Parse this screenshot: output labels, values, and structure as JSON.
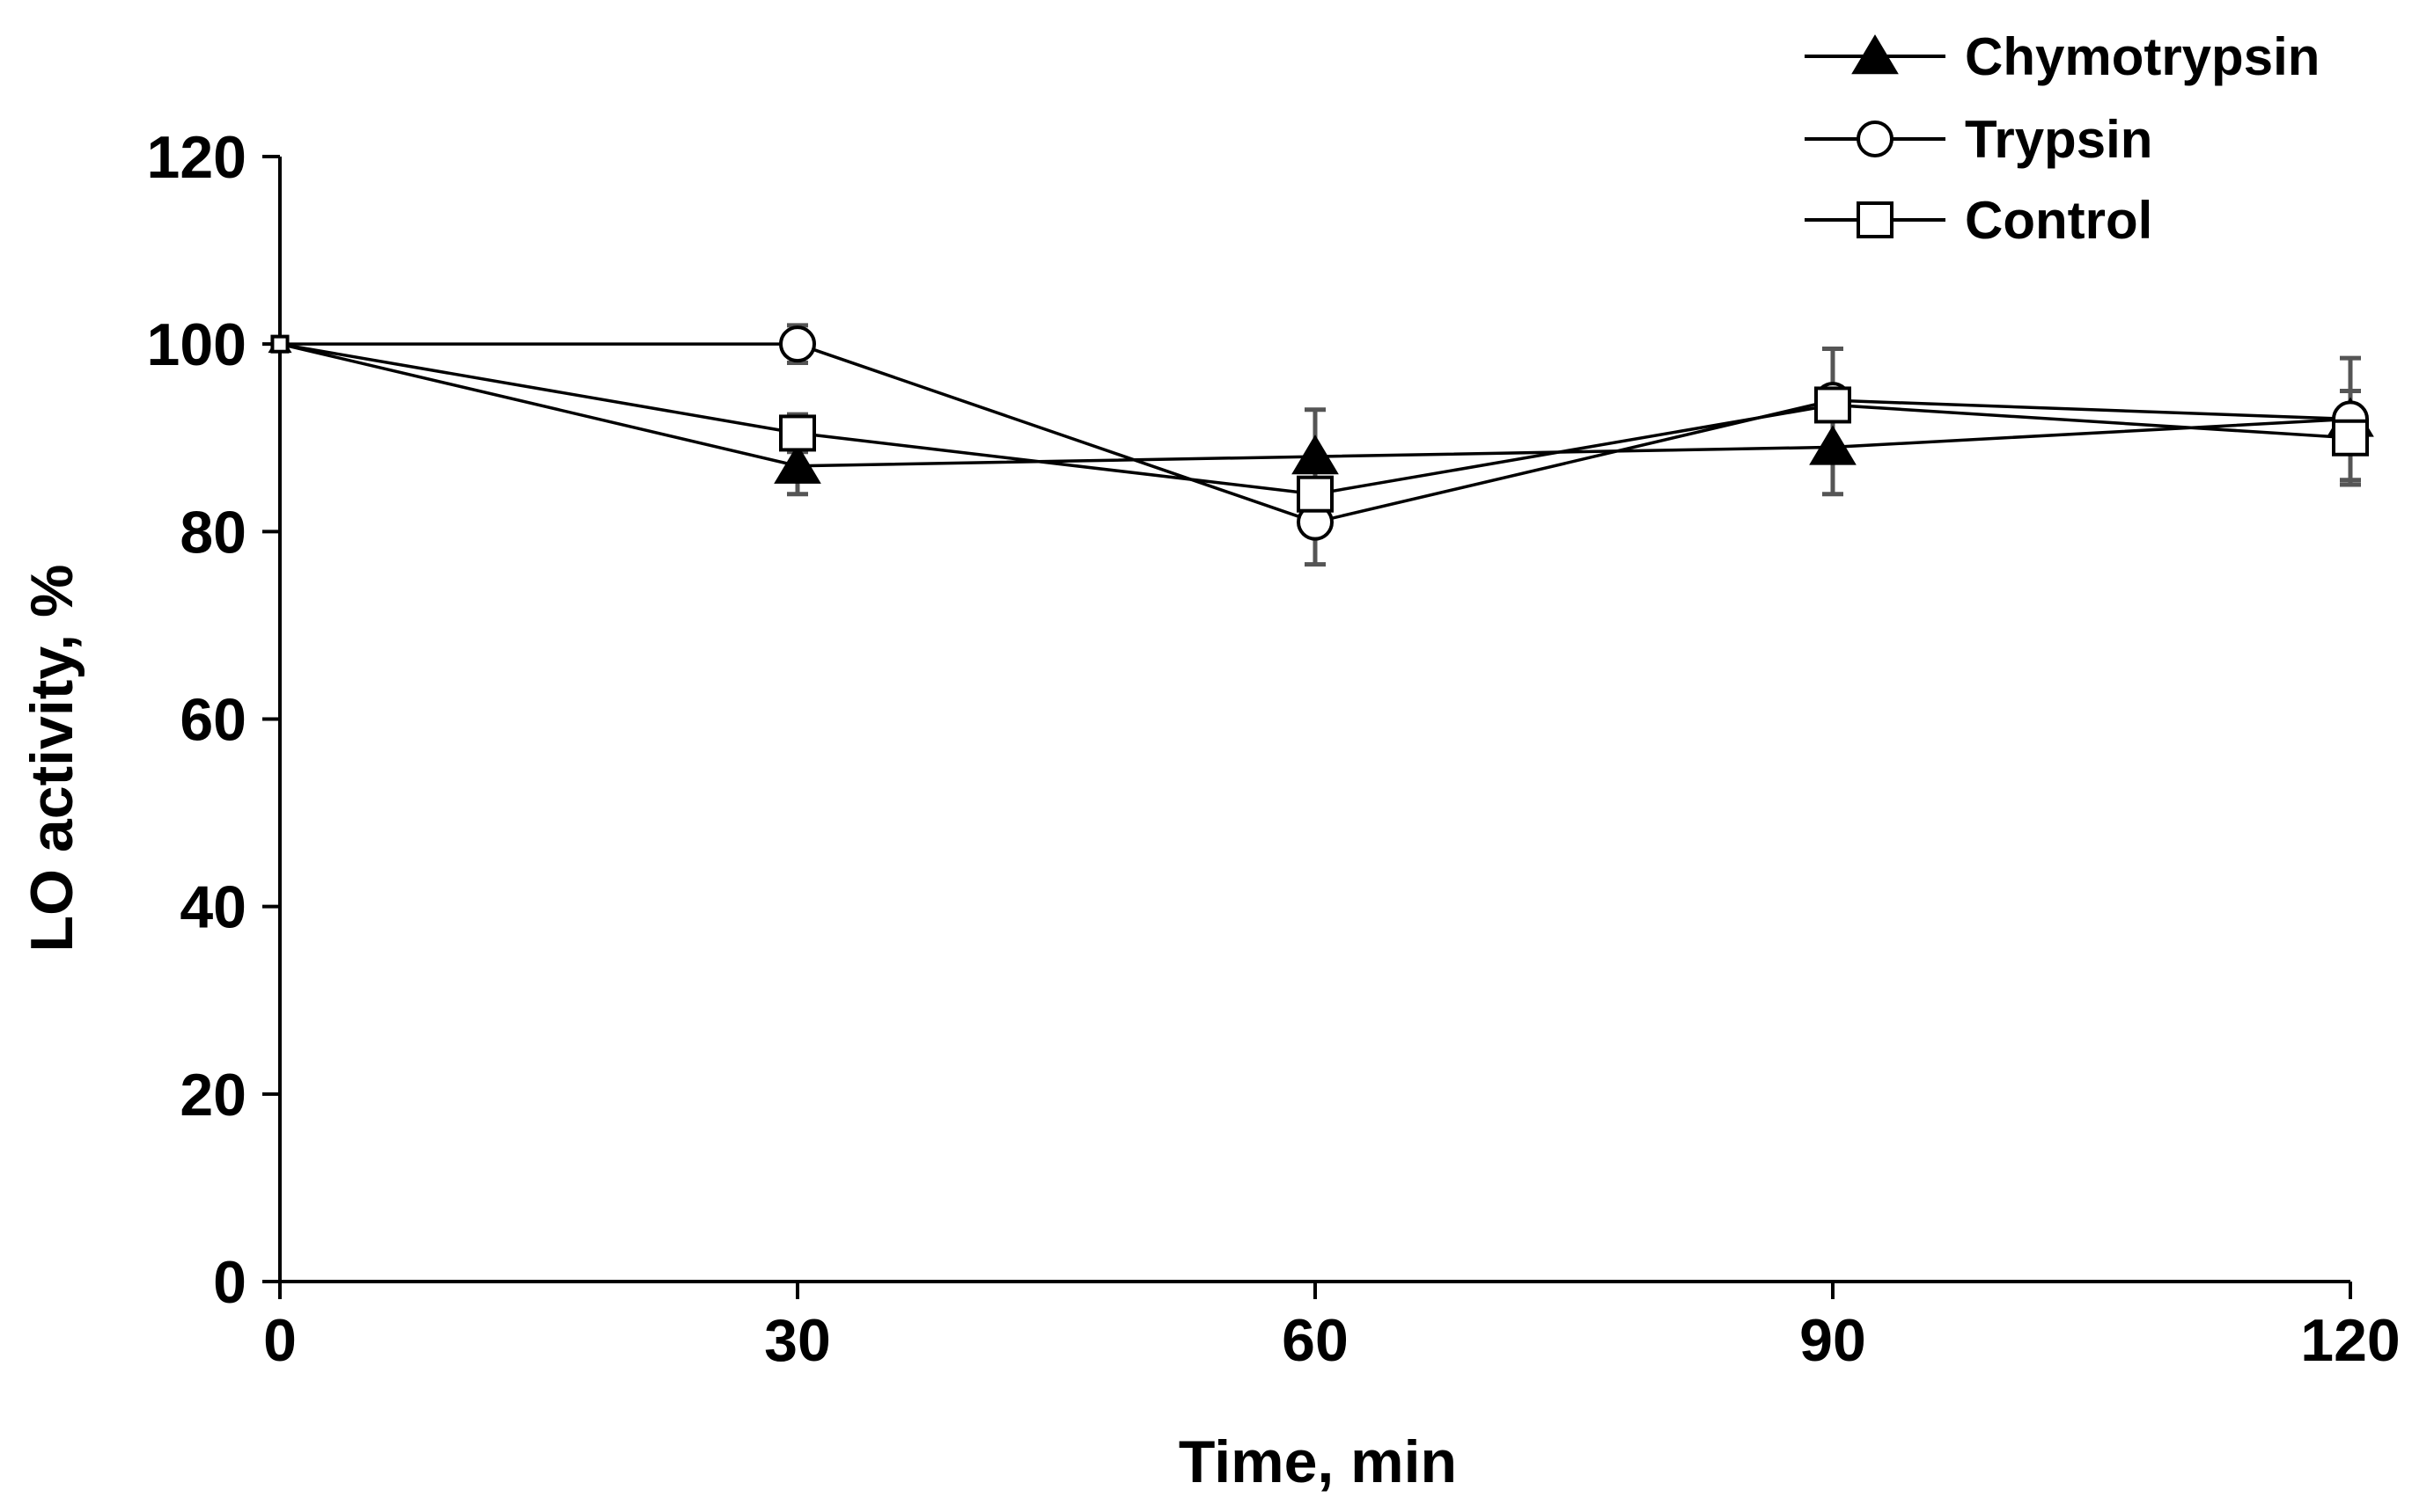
{
  "chart_data": {
    "type": "line",
    "title": "",
    "xlabel": "Time, min",
    "ylabel": "LO activity, %",
    "xlim": [
      0,
      120
    ],
    "ylim": [
      0,
      120
    ],
    "x_ticks": [
      0,
      30,
      60,
      90,
      120
    ],
    "y_ticks": [
      0,
      20,
      40,
      60,
      80,
      100,
      120
    ],
    "x_tick_labels": [
      "0",
      "30",
      "60",
      "90",
      "120"
    ],
    "y_tick_labels": [
      "0",
      "20",
      "40",
      "60",
      "80",
      "100",
      "120"
    ],
    "grid": false,
    "legend_position": "top-right",
    "x": [
      0,
      30,
      60,
      90,
      120
    ],
    "series": [
      {
        "name": "Chymotrypsin",
        "marker": "filled-triangle",
        "values": [
          100,
          87,
          88,
          89,
          92
        ],
        "errors": [
          0,
          3,
          5,
          5,
          3
        ]
      },
      {
        "name": "Trypsin",
        "marker": "open-circle",
        "values": [
          100,
          100,
          81,
          94,
          92
        ],
        "errors": [
          0,
          2,
          4.5,
          5.5,
          6.5
        ]
      },
      {
        "name": "Control",
        "marker": "open-square",
        "values": [
          100,
          90.5,
          84,
          93.5,
          90
        ],
        "errors": [
          0,
          2,
          4,
          6,
          5
        ]
      }
    ],
    "colors": {
      "line": "#000000",
      "error_bar": "#555555",
      "background": "#ffffff"
    }
  }
}
